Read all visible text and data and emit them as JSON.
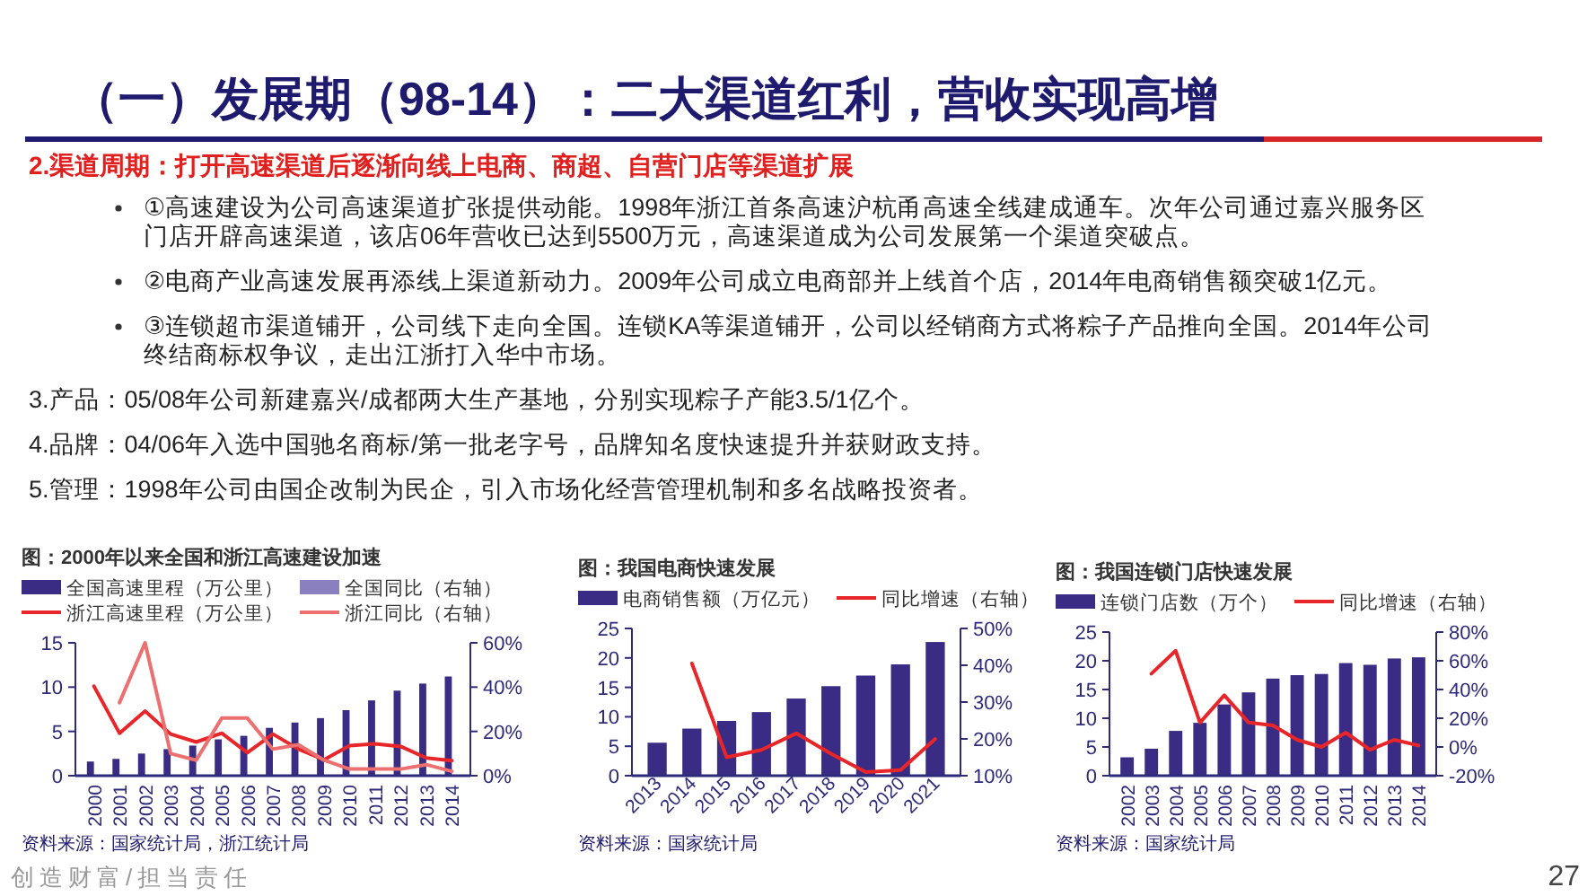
{
  "chart_data": [
    {
      "type": "other",
      "title": "（一）发展期（98-14）：二大渠道红利，营收实现高增",
      "subtitle": "2.渠道周期：打开高速渠道后逐渐向线上电商、商超、自营门店等渠道扩展",
      "annotations": [
        "①高速建设为公司高速渠道扩张提供动能。1998年浙江首条高速沪杭甬高速全线建成通车。次年公司通过嘉兴服务区门店开辟高速渠道，该店06年营收已达到5500万元，高速渠道成为公司发展第一个渠道突破点。",
        "②电商产业高速发展再添线上渠道新动力。2009年公司成立电商部并上线首个店，2014年电商销售额突破1亿元。",
        "③连锁超市渠道铺开，公司线下走向全国。连锁KA等渠道铺开，公司以经销商方式将粽子产品推向全国。2014年公司终结商标权争议，走出江浙打入华中市场。",
        "3.产品：05/08年公司新建嘉兴/成都两大生产基地，分别实现粽子产能3.5/1亿个。",
        "4.品牌：04/06年入选中国驰名商标/第一批老字号，品牌知名度快速提升并获财政支持。",
        "5.管理：1998年公司由国企改制为民企，引入市场化经营管理机制和多名战略投资者。",
        "创造财富/担当责任",
        "27"
      ]
    },
    {
      "type": "bar",
      "title": "图：2000年以来全国和浙江高速建设加速",
      "legend": "top",
      "annotations": [
        "资料来源：国家统计局，浙江统计局"
      ],
      "categories": [
        "2000",
        "2001",
        "2002",
        "2003",
        "2004",
        "2005",
        "2006",
        "2007",
        "2008",
        "2009",
        "2010",
        "2011",
        "2012",
        "2013",
        "2014"
      ],
      "ylim": [
        0,
        15
      ],
      "yticks": [
        0,
        5,
        10,
        15
      ],
      "y2lim": [
        0,
        60
      ],
      "y2ticks": [
        {
          "value": 0,
          "label": "0%"
        },
        {
          "value": 20,
          "label": "20%"
        },
        {
          "value": 40,
          "label": "40%"
        },
        {
          "value": 60,
          "label": "60%"
        }
      ],
      "series": [
        {
          "name": "全国高速里程（万公里）",
          "type": "bar",
          "color": "#3a2c84",
          "values": [
            1.6,
            1.9,
            2.5,
            3.0,
            3.4,
            4.1,
            4.5,
            5.4,
            6.0,
            6.5,
            7.4,
            8.5,
            9.6,
            10.4,
            11.2
          ]
        },
        {
          "name": "全国同比（右轴）",
          "type": "bar",
          "axis": "y2",
          "color": "#8a80c0",
          "values": [
            null,
            null,
            null,
            null,
            null,
            null,
            null,
            null,
            null,
            null,
            null,
            null,
            null,
            null,
            null
          ]
        },
        {
          "name": "浙江高速里程（万公里）",
          "type": "line",
          "color": "#e8262a",
          "values": [
            10.1,
            4.8,
            7.3,
            4.7,
            3.8,
            4.8,
            2.6,
            4.7,
            3.0,
            1.8,
            3.4,
            3.6,
            3.3,
            2.0,
            1.7
          ]
        },
        {
          "name": "浙江同比（右轴）",
          "type": "line",
          "axis": "y2",
          "color": "#ec7070",
          "values": [
            null,
            33,
            60,
            10,
            7,
            26,
            26,
            12,
            14,
            7,
            3,
            3,
            3,
            5,
            2
          ]
        }
      ]
    },
    {
      "type": "bar",
      "title": "图：我国电商快速发展",
      "legend": "top",
      "annotations": [
        "资料来源：国家统计局"
      ],
      "categories": [
        "2013",
        "2014",
        "2015",
        "2016",
        "2017",
        "2018",
        "2019",
        "2020",
        "2021"
      ],
      "ylim": [
        0,
        25
      ],
      "yticks": [
        0,
        5,
        10,
        15,
        20,
        25
      ],
      "y2lim": [
        10,
        50
      ],
      "y2ticks": [
        {
          "value": 10,
          "label": "10%"
        },
        {
          "value": 20,
          "label": "20%"
        },
        {
          "value": 30,
          "label": "30%"
        },
        {
          "value": 40,
          "label": "40%"
        },
        {
          "value": 50,
          "label": "50%"
        }
      ],
      "series": [
        {
          "name": "电商销售额（万亿元）",
          "type": "bar",
          "color": "#3a2c84",
          "values": [
            5.6,
            8.0,
            9.3,
            10.8,
            13.1,
            15.2,
            17.0,
            18.9,
            22.7
          ]
        },
        {
          "name": "同比增速（右轴）",
          "type": "line",
          "axis": "y2",
          "color": "#e8262a",
          "values": [
            null,
            40.5,
            15,
            17,
            21.5,
            16,
            11,
            11.5,
            20
          ]
        }
      ]
    },
    {
      "type": "bar",
      "title": "图：我国连锁门店快速发展",
      "legend": "top",
      "annotations": [
        "资料来源：国家统计局"
      ],
      "categories": [
        "2002",
        "2003",
        "2004",
        "2005",
        "2006",
        "2007",
        "2008",
        "2009",
        "2010",
        "2011",
        "2012",
        "2013",
        "2014"
      ],
      "ylim": [
        0,
        25
      ],
      "yticks": [
        0,
        5,
        10,
        15,
        20,
        25
      ],
      "y2lim": [
        -20,
        80
      ],
      "y2ticks": [
        {
          "value": -20,
          "label": "-20%"
        },
        {
          "value": 0,
          "label": "0%"
        },
        {
          "value": 20,
          "label": "20%"
        },
        {
          "value": 40,
          "label": "40%"
        },
        {
          "value": 60,
          "label": "60%"
        },
        {
          "value": 80,
          "label": "80%"
        }
      ],
      "series": [
        {
          "name": "连锁门店数（万个）",
          "type": "bar",
          "color": "#3a2c84",
          "values": [
            3.2,
            4.7,
            7.8,
            9.2,
            12.4,
            14.5,
            16.9,
            17.5,
            17.7,
            19.6,
            19.3,
            20.4,
            20.6
          ]
        },
        {
          "name": "同比增速（右轴）",
          "type": "line",
          "axis": "y2",
          "color": "#e8262a",
          "values": [
            null,
            51,
            67,
            17,
            36,
            17,
            15,
            5,
            0,
            10,
            -2,
            5,
            1
          ]
        }
      ]
    }
  ]
}
